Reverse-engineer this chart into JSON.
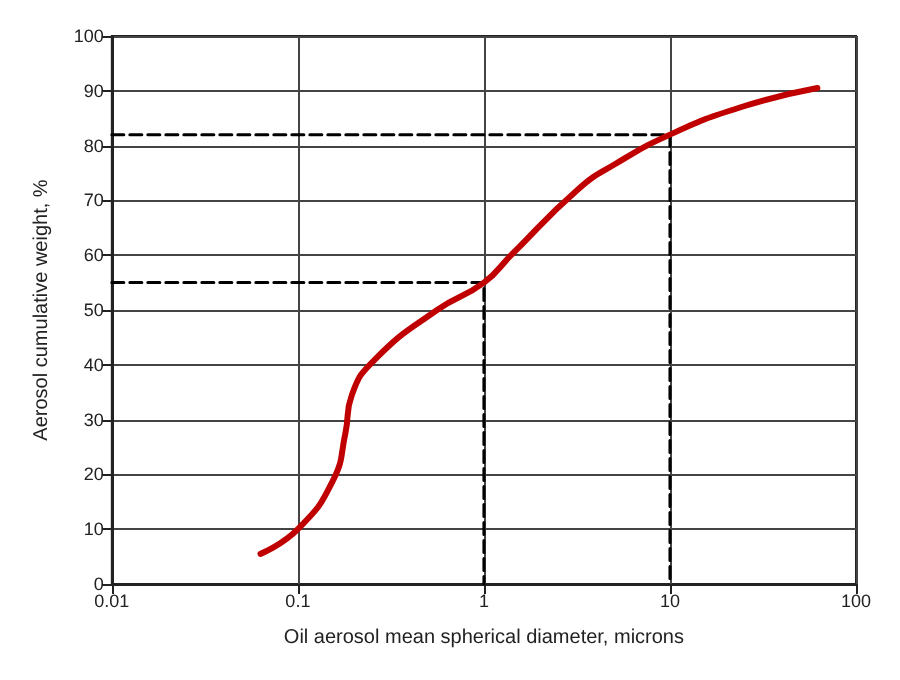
{
  "chart_data": {
    "type": "line",
    "xlabel": "Oil aerosol mean spherical diameter, microns",
    "ylabel": "Aerosol cumulative weight, %",
    "log": "x",
    "grid": true,
    "xlim": [
      0.01,
      100
    ],
    "xticks": [
      0.01,
      0.1,
      1,
      10,
      100
    ],
    "ylim": [
      0,
      100
    ],
    "yticks": [
      0,
      10,
      20,
      30,
      40,
      50,
      60,
      70,
      80,
      90,
      100
    ],
    "series": [
      {
        "color": "#c00000",
        "line_style": "solid",
        "x": [
          0.063,
          0.1,
          0.155,
          0.18,
          0.195,
          0.26,
          0.56,
          1,
          1.4,
          3.2,
          5,
          10,
          24,
          62
        ],
        "values": [
          5.5,
          10,
          19,
          27.5,
          34.5,
          41,
          50,
          55,
          60,
          72,
          76.5,
          82,
          87,
          90.5
        ]
      },
      {
        "color": "#000000",
        "line_style": "dashed",
        "x": [
          0.01,
          1,
          1
        ],
        "values": [
          55,
          55,
          0
        ]
      },
      {
        "color": "#000000",
        "line_style": "dashed",
        "x": [
          0.01,
          10,
          10
        ],
        "values": [
          82,
          82,
          0
        ]
      }
    ]
  }
}
